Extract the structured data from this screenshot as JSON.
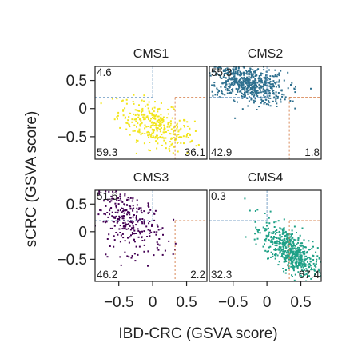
{
  "chart_data": {
    "type": "scatter",
    "xlabel": "IBD-CRC (GSVA score)",
    "ylabel": "sCRC (GSVA score)",
    "xlim": [
      -0.85,
      0.8
    ],
    "ylim": [
      -0.9,
      0.75
    ],
    "xticks": [
      -0.5,
      0,
      0.5
    ],
    "xtick_labels": [
      "−0.5",
      "0",
      "0.5"
    ],
    "yticks": [
      0.5,
      0,
      -0.5
    ],
    "ytick_labels": [
      "0.5",
      "0",
      "−0.5"
    ],
    "threshold_x": 0.33,
    "threshold_y": 0.2,
    "blue_threshold_x": 0.0,
    "blue_threshold_y": 0.2,
    "panels": [
      {
        "name": "CMS1",
        "color": "#f2e51d",
        "point_count": 320,
        "cluster": {
          "x": 0.05,
          "y": -0.3,
          "sx": 0.28,
          "sy": 0.22,
          "rho": -0.55
        },
        "percents": {
          "top_left": "4.6",
          "bottom_left": "59.3",
          "bottom_right": "36.1",
          "top_right": ""
        }
      },
      {
        "name": "CMS2",
        "color": "#2d6f8e",
        "point_count": 650,
        "cluster": {
          "x": -0.3,
          "y": 0.45,
          "sx": 0.3,
          "sy": 0.18,
          "rho": -0.4
        },
        "percents": {
          "top_left": "55.3",
          "bottom_left": "42.9",
          "bottom_right": "1.8",
          "top_right": ""
        }
      },
      {
        "name": "CMS3",
        "color": "#440154",
        "point_count": 300,
        "cluster": {
          "x": -0.35,
          "y": 0.2,
          "sx": 0.25,
          "sy": 0.3,
          "rho": -0.4
        },
        "percents": {
          "top_left": "51.6",
          "bottom_left": "46.2",
          "bottom_right": "2.2",
          "top_right": ""
        }
      },
      {
        "name": "CMS4",
        "color": "#1fa187",
        "point_count": 560,
        "cluster": {
          "x": 0.35,
          "y": -0.35,
          "sx": 0.2,
          "sy": 0.25,
          "rho": -0.65
        },
        "percents": {
          "top_left": "0.3",
          "bottom_left": "32.3",
          "bottom_right": "67.4",
          "top_right": ""
        }
      }
    ]
  }
}
